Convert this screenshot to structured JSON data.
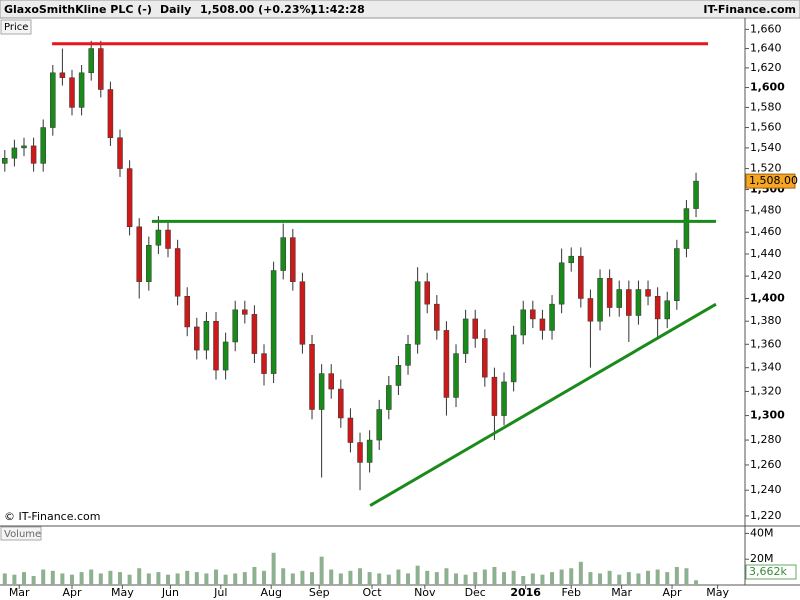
{
  "header": {
    "title": "GlaxoSmithKline PLC (-)",
    "interval": "Daily",
    "quote": "1,508.00 (+0.23%)",
    "time": "11:42:28",
    "source": "IT-Finance.com",
    "watermark": "© IT-Finance.com"
  },
  "chart_data": [
    {
      "type": "candlestick",
      "panel_label": "Price",
      "log": true,
      "up_color": "#1a8a1a",
      "down_color": "#cc1a1a",
      "x": [
        2,
        6,
        10,
        14,
        18,
        22,
        26,
        30,
        34,
        38,
        42,
        46,
        50,
        54,
        58,
        62,
        66,
        70,
        74,
        78,
        82,
        86,
        90,
        94,
        98,
        102,
        106,
        110,
        114,
        118,
        122,
        126,
        130,
        134,
        138,
        142,
        146,
        150,
        154,
        158,
        162,
        166,
        170,
        174,
        178,
        182,
        186,
        190,
        194,
        198,
        202,
        206,
        210,
        214,
        218,
        222,
        226,
        230,
        234,
        238,
        242,
        246,
        250,
        254,
        258,
        262,
        266,
        270,
        274,
        278,
        282,
        286,
        290
      ],
      "open": [
        1525,
        1530,
        1540,
        1542,
        1525,
        1560,
        1615,
        1610,
        1580,
        1615,
        1640,
        1598,
        1550,
        1520,
        1465,
        1415,
        1448,
        1462,
        1445,
        1402,
        1375,
        1355,
        1380,
        1338,
        1362,
        1390,
        1386,
        1352,
        1335,
        1425,
        1455,
        1415,
        1360,
        1305,
        1335,
        1322,
        1298,
        1278,
        1262,
        1280,
        1305,
        1325,
        1342,
        1360,
        1415,
        1395,
        1372,
        1315,
        1352,
        1382,
        1365,
        1332,
        1300,
        1328,
        1368,
        1390,
        1382,
        1372,
        1395,
        1432,
        1438,
        1400,
        1380,
        1418,
        1392,
        1408,
        1385,
        1408,
        1402,
        1382,
        1398,
        1445,
        1482
      ],
      "high": [
        1538,
        1548,
        1550,
        1550,
        1568,
        1623,
        1640,
        1618,
        1623,
        1648,
        1648,
        1606,
        1558,
        1528,
        1473,
        1456,
        1475,
        1470,
        1453,
        1410,
        1383,
        1388,
        1388,
        1370,
        1398,
        1398,
        1394,
        1360,
        1433,
        1468,
        1463,
        1423,
        1368,
        1343,
        1343,
        1330,
        1306,
        1286,
        1288,
        1313,
        1333,
        1350,
        1368,
        1428,
        1423,
        1403,
        1380,
        1360,
        1390,
        1390,
        1373,
        1340,
        1336,
        1376,
        1398,
        1398,
        1390,
        1403,
        1445,
        1446,
        1446,
        1408,
        1426,
        1426,
        1416,
        1416,
        1416,
        1416,
        1410,
        1406,
        1453,
        1490,
        1516
      ],
      "low": [
        1517,
        1522,
        1532,
        1517,
        1517,
        1552,
        1602,
        1572,
        1572,
        1607,
        1590,
        1542,
        1512,
        1457,
        1400,
        1407,
        1440,
        1437,
        1394,
        1367,
        1347,
        1347,
        1330,
        1330,
        1354,
        1378,
        1344,
        1325,
        1327,
        1417,
        1407,
        1352,
        1297,
        1250,
        1314,
        1290,
        1270,
        1240,
        1254,
        1272,
        1297,
        1317,
        1334,
        1352,
        1387,
        1364,
        1300,
        1307,
        1344,
        1357,
        1324,
        1280,
        1292,
        1320,
        1360,
        1374,
        1364,
        1364,
        1387,
        1424,
        1392,
        1340,
        1372,
        1384,
        1384,
        1362,
        1377,
        1394,
        1365,
        1374,
        1390,
        1437,
        1474
      ],
      "close": [
        1530,
        1540,
        1542,
        1525,
        1560,
        1615,
        1610,
        1580,
        1615,
        1640,
        1598,
        1550,
        1520,
        1465,
        1415,
        1448,
        1462,
        1445,
        1402,
        1375,
        1355,
        1380,
        1338,
        1362,
        1390,
        1386,
        1352,
        1335,
        1425,
        1455,
        1415,
        1360,
        1305,
        1335,
        1322,
        1298,
        1278,
        1262,
        1280,
        1305,
        1325,
        1342,
        1360,
        1415,
        1395,
        1372,
        1315,
        1352,
        1382,
        1365,
        1332,
        1300,
        1328,
        1368,
        1390,
        1382,
        1372,
        1395,
        1432,
        1438,
        1400,
        1380,
        1418,
        1392,
        1408,
        1385,
        1408,
        1402,
        1382,
        1398,
        1445,
        1482,
        1508
      ],
      "last_value_label": "1,508.00",
      "last_color": "#f5a623",
      "xlim": [
        0,
        310.4
      ],
      "ylim": [
        1213,
        1672
      ],
      "yticks": [
        {
          "value": 1220,
          "label": "1,220"
        },
        {
          "value": 1240,
          "label": "1,240"
        },
        {
          "value": 1260,
          "label": "1,260"
        },
        {
          "value": 1280,
          "label": "1,280"
        },
        {
          "value": 1300,
          "label": "1,300"
        },
        {
          "value": 1320,
          "label": "1,320"
        },
        {
          "value": 1340,
          "label": "1,340"
        },
        {
          "value": 1360,
          "label": "1,360"
        },
        {
          "value": 1380,
          "label": "1,380"
        },
        {
          "value": 1400,
          "label": "1,400"
        },
        {
          "value": 1420,
          "label": "1,420"
        },
        {
          "value": 1440,
          "label": "1,440"
        },
        {
          "value": 1460,
          "label": "1,460"
        },
        {
          "value": 1480,
          "label": "1,480"
        },
        {
          "value": 1500,
          "label": "1,500"
        },
        {
          "value": 1520,
          "label": "1,520"
        },
        {
          "value": 1540,
          "label": "1,540"
        },
        {
          "value": 1560,
          "label": "1,560"
        },
        {
          "value": 1580,
          "label": "1,580"
        },
        {
          "value": 1600,
          "label": "1,600"
        },
        {
          "value": 1620,
          "label": "1,620"
        },
        {
          "value": 1640,
          "label": "1,640"
        },
        {
          "value": 1660,
          "label": "1,660"
        }
      ],
      "xticks": [
        {
          "value": 8,
          "label": "Mar"
        },
        {
          "value": 30,
          "label": "Apr"
        },
        {
          "value": 51,
          "label": "May"
        },
        {
          "value": 71,
          "label": "Jun"
        },
        {
          "value": 92,
          "label": "Jul"
        },
        {
          "value": 113,
          "label": "Aug"
        },
        {
          "value": 133,
          "label": "Sep"
        },
        {
          "value": 155,
          "label": "Oct"
        },
        {
          "value": 177,
          "label": "Nov"
        },
        {
          "value": 198,
          "label": "Dec"
        },
        {
          "value": 219,
          "label": "2016"
        },
        {
          "value": 238,
          "label": "Feb"
        },
        {
          "value": 259,
          "label": "Mar"
        },
        {
          "value": 280,
          "label": "Apr"
        },
        {
          "value": 299,
          "label": "May"
        }
      ],
      "lines": [
        {
          "color": "#e8141a",
          "x": [
            21.7,
            295
          ],
          "y": [
            1645,
            1645
          ]
        },
        {
          "color": "#1a8a1a",
          "x": [
            63.3,
            298.3
          ],
          "y": [
            1470,
            1470
          ]
        },
        {
          "color": "#1a8a1a",
          "x": [
            154.2,
            298.3
          ],
          "y": [
            1228,
            1395
          ]
        }
      ]
    },
    {
      "type": "bar",
      "panel_label": "Volume",
      "color": "#8fb08f",
      "values": [
        9,
        8,
        10,
        7,
        12,
        11,
        9,
        8,
        10,
        12,
        9,
        11,
        10,
        8,
        13,
        9,
        10,
        8,
        9,
        11,
        10,
        9,
        12,
        8,
        9,
        10,
        14,
        11,
        25,
        13,
        9,
        11,
        10,
        22,
        12,
        9,
        11,
        13,
        10,
        9,
        8,
        12,
        9,
        15,
        11,
        10,
        13,
        9,
        8,
        10,
        12,
        14,
        10,
        11,
        7,
        9,
        8,
        10,
        12,
        13,
        18,
        10,
        9,
        11,
        8,
        10,
        9,
        11,
        12,
        10,
        14,
        13,
        3.662
      ],
      "last_value_label": "3,662k",
      "ylim": [
        0,
        45
      ],
      "yticks": [
        {
          "value": 20,
          "label": "20M"
        },
        {
          "value": 40,
          "label": "40M"
        }
      ]
    }
  ]
}
